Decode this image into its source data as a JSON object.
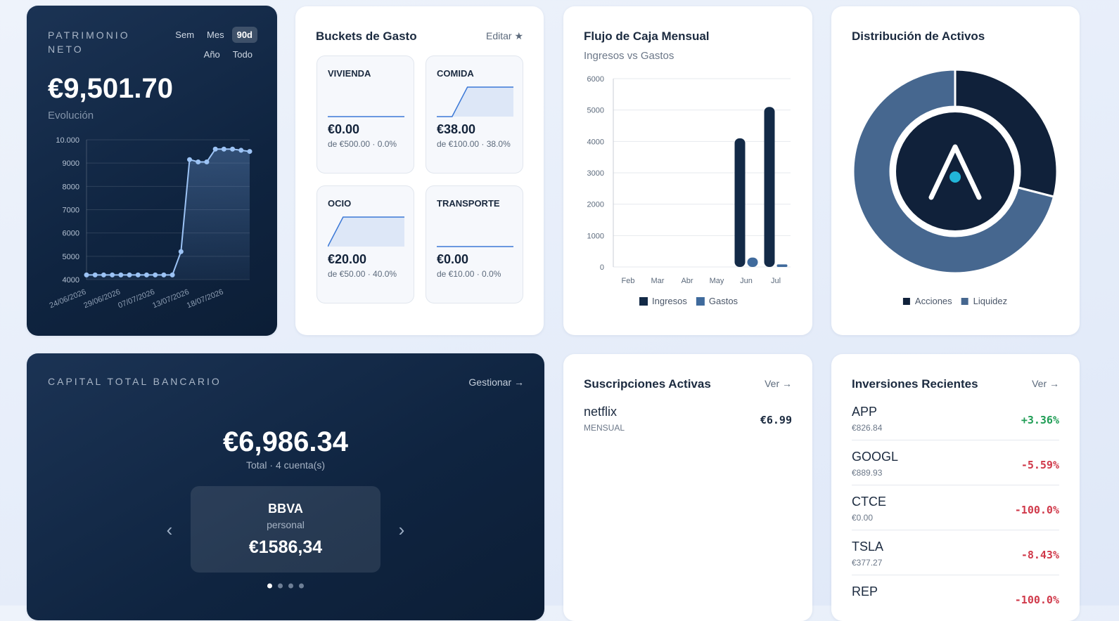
{
  "net_worth": {
    "title": "PATRIMONIO NETO",
    "periods": [
      "Sem",
      "Mes",
      "90d",
      "Año",
      "Todo"
    ],
    "active_period": "90d",
    "value": "€9,501.70",
    "subtitle": "Evolución",
    "chart": {
      "type": "line",
      "color": "#9cc3f5",
      "categories": [
        "24/06/2026",
        null,
        null,
        null,
        "29/06/2026",
        null,
        null,
        null,
        "07/07/2026",
        null,
        null,
        null,
        "13/07/2026",
        null,
        null,
        null,
        "18/07/2026",
        null,
        null,
        null
      ],
      "values": [
        4200,
        4200,
        4200,
        4200,
        4200,
        4200,
        4200,
        4200,
        4200,
        4200,
        4200,
        5200,
        9150,
        9050,
        9050,
        9600,
        9600,
        9600,
        9550,
        9500
      ],
      "ylim": [
        4000,
        10000
      ],
      "yticks": [
        4000,
        5000,
        6000,
        7000,
        8000,
        9000,
        {
          "value": 10000,
          "label": "10.000"
        }
      ],
      "grid": true
    }
  },
  "buckets": {
    "title": "Buckets de Gasto",
    "action": "Editar ★",
    "items": [
      {
        "name": "VIVIENDA",
        "amount": "€0.00",
        "detail": "de €500.00 · 0.0%",
        "trend": [
          0,
          0,
          0,
          0,
          0,
          0
        ]
      },
      {
        "name": "COMIDA",
        "amount": "€38.00",
        "detail": "de €100.00 · 38.0%",
        "trend": [
          0,
          0,
          38,
          38,
          38,
          38
        ]
      },
      {
        "name": "OCIO",
        "amount": "€20.00",
        "detail": "de €50.00 · 40.0%",
        "trend": [
          0,
          20,
          20,
          20,
          20,
          20
        ]
      },
      {
        "name": "TRANSPORTE",
        "amount": "€0.00",
        "detail": "de €10.00 · 0.0%",
        "trend": [
          0,
          0,
          0,
          0,
          0,
          0
        ]
      }
    ]
  },
  "cash_flow": {
    "type": "bar",
    "title": "Flujo de Caja Mensual",
    "subtitle": "Ingresos vs Gastos",
    "categories": [
      "Feb",
      "Mar",
      "Abr",
      "May",
      "Jun",
      "Jul"
    ],
    "series": [
      {
        "name": "Ingresos",
        "color": "#132a47",
        "values": [
          0,
          0,
          0,
          0,
          4100,
          5100
        ]
      },
      {
        "name": "Gastos",
        "color": "#3f6a9c",
        "values": [
          0,
          0,
          0,
          0,
          300,
          80
        ]
      }
    ],
    "ylim": [
      0,
      6000
    ],
    "yticks": [
      0,
      1000,
      2000,
      3000,
      4000,
      5000,
      6000
    ],
    "grid": true
  },
  "assets": {
    "type": "pie",
    "title": "Distribución de Activos",
    "categories": [
      "Acciones",
      "Liquidez"
    ],
    "values": [
      29,
      71
    ],
    "colors": [
      "#10213a",
      "#46678f"
    ]
  },
  "bank": {
    "title": "CAPITAL TOTAL BANCARIO",
    "action": "Gestionar →",
    "value": "€6,986.34",
    "summary": "Total · 4 cuenta(s)",
    "account": {
      "name": "BBVA",
      "type": "personal",
      "balance": "€1586,34"
    },
    "prev": "‹",
    "next": "›",
    "pages": 4,
    "active_page": 0
  },
  "subscriptions": {
    "title": "Suscripciones Activas",
    "action": "Ver →",
    "items": [
      {
        "name": "netflix",
        "period": "MENSUAL",
        "price": "€6.99"
      }
    ]
  },
  "investments": {
    "title": "Inversiones Recientes",
    "action": "Ver →",
    "items": [
      {
        "symbol": "APP",
        "value": "€826.84",
        "change": "+3.36%",
        "color": "#1f9d55"
      },
      {
        "symbol": "GOOGL",
        "value": "€889.93",
        "change": "-5.59%",
        "color": "#d0394a"
      },
      {
        "symbol": "CTCE",
        "value": "€0.00",
        "change": "-100.0%",
        "color": "#d0394a"
      },
      {
        "symbol": "TSLA",
        "value": "€377.27",
        "change": "-8.43%",
        "color": "#d0394a"
      },
      {
        "symbol": "REP",
        "change": "-100.0%",
        "color": "#d0394a"
      }
    ]
  }
}
